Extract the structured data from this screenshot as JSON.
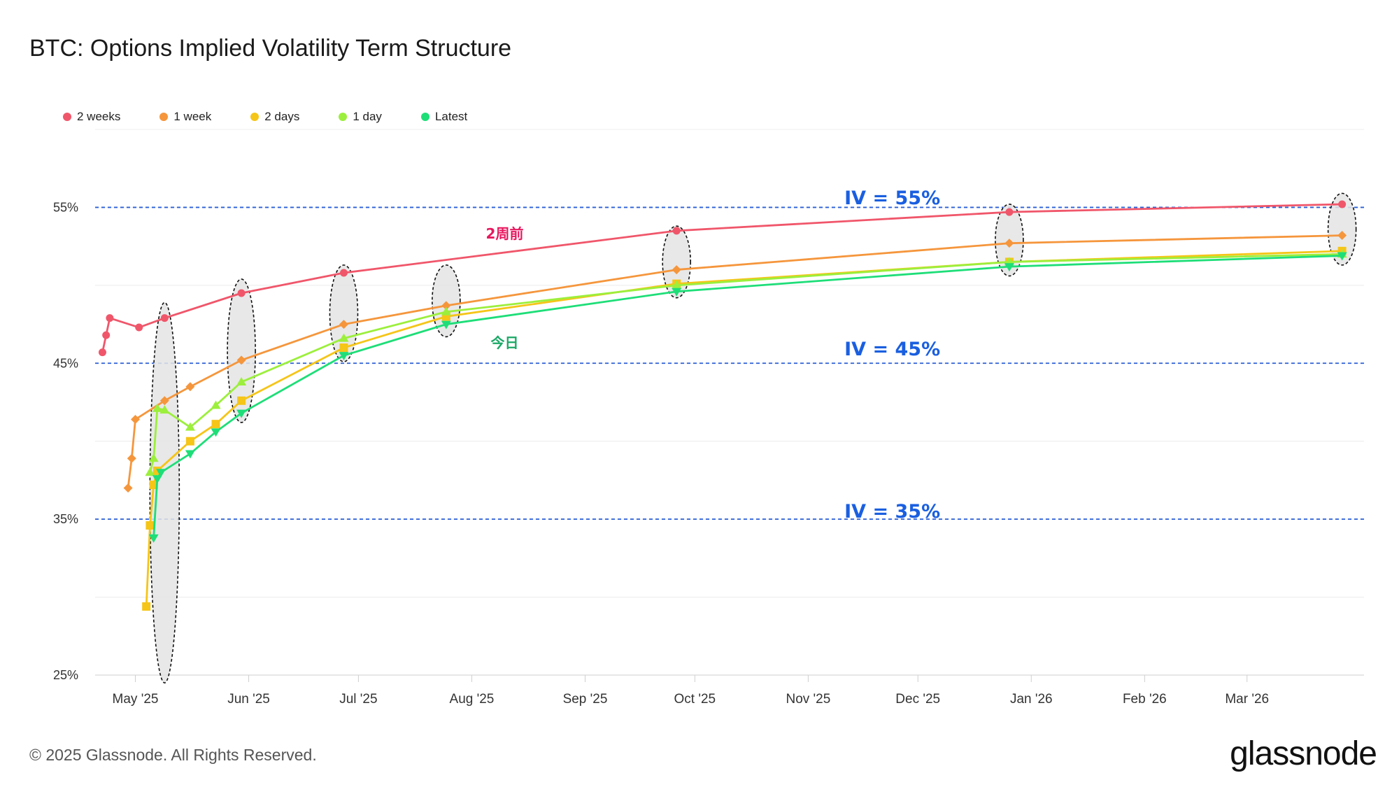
{
  "header": {
    "title": "BTC: Options Implied Volatility Term Structure"
  },
  "footer": {
    "copyright": "© 2025 Glassnode. All Rights Reserved.",
    "logo_text": "glassnode"
  },
  "chart_data": {
    "type": "line",
    "title": "BTC: Options Implied Volatility Term Structure",
    "x_axis": {
      "type": "date",
      "range": [
        "2025-04-24",
        "2026-03-30"
      ],
      "tick_labels": [
        "May '25",
        "Jun '25",
        "Jul '25",
        "Aug '25",
        "Sep '25",
        "Oct '25",
        "Nov '25",
        "Dec '25",
        "Jan '26",
        "Feb '26",
        "Mar '26"
      ],
      "tick_dates": [
        "2025-05-01",
        "2025-06-01",
        "2025-07-01",
        "2025-08-01",
        "2025-09-01",
        "2025-10-01",
        "2025-11-01",
        "2025-12-01",
        "2026-01-01",
        "2026-02-01",
        "2026-03-01"
      ]
    },
    "y_axis": {
      "range": [
        25,
        60
      ],
      "tick_values": [
        25,
        35,
        45,
        55
      ],
      "tick_labels": [
        "25%",
        "35%",
        "45%",
        "55%"
      ]
    },
    "grid": true,
    "legend_position": "top-left",
    "series": [
      {
        "name": "2 weeks",
        "color": "#f0566a",
        "marker": "circle",
        "points": [
          [
            "2025-04-26",
            45.7
          ],
          [
            "2025-04-27",
            46.8
          ],
          [
            "2025-04-28",
            47.8
          ],
          [
            "2025-05-02",
            47.8
          ],
          [
            "2025-05-02",
            47.8
          ],
          [
            "2025-05-03",
            47.8
          ],
          [
            "2025-05-03",
            47.8
          ],
          [
            "2025-05-03",
            47.8
          ],
          [
            "2025-05-02",
            47.8
          ],
          [
            "2025-05-03",
            47.8
          ],
          [
            "2025-05-03",
            47.8
          ],
          [
            "2025-05-03",
            47.8
          ],
          [
            "2025-05-03",
            47.8
          ],
          [
            "2025-05-03",
            47.8
          ],
          [
            "2025-05-03",
            47.8
          ],
          [
            "2025-05-03",
            47.8
          ],
          [
            "2025-05-03",
            47.8
          ],
          [
            "2025-05-03",
            47.8
          ],
          [
            "2025-05-03",
            47.8
          ],
          [
            "2025-05-03",
            47.8
          ],
          [
            "2025-05-03",
            47.8
          ],
          [
            "2025-05-03",
            47.8
          ],
          [
            "2025-05-03",
            47.8
          ],
          [
            "2025-05-03",
            47.8
          ],
          [
            "2025-05-03",
            47.8
          ],
          [
            "2025-05-03",
            47.8
          ],
          [
            "2025-05-03",
            47.8
          ],
          [
            "2025-05-03",
            47.8
          ],
          [
            "2025-05-03",
            47.8
          ],
          [
            "2025-05-03",
            47.8
          ],
          [
            "2025-05-03",
            47.8
          ],
          [
            "2025-05-03",
            47.8
          ],
          [
            "2025-05-03",
            47.8
          ],
          [
            "2025-05-03",
            47.8
          ],
          [
            "2025-05-03",
            47.8
          ],
          [
            "2025-05-03",
            47.8
          ],
          [
            "2025-05-03",
            47.8
          ],
          [
            "2025-05-03",
            47.8
          ],
          [
            "2025-05-03",
            47.8
          ],
          [
            "2025-05-03",
            47.8
          ],
          [
            "2025-05-03",
            47.8
          ],
          [
            "2025-05-03",
            47.8
          ],
          [
            "2025-05-03",
            47.8
          ],
          [
            "2025-05-03",
            47.8
          ],
          [
            "2025-05-03",
            47.8
          ],
          [
            "2025-05-03",
            47.8
          ],
          [
            "2025-05-03",
            47.8
          ],
          [
            "2025-05-03",
            47.8
          ],
          [
            "2025-05-03",
            47.8
          ],
          [
            "2025-05-03",
            47.8
          ],
          [
            "2025-05-03",
            47.8
          ],
          [
            "2025-05-03",
            47.8
          ],
          [
            "2025-05-03",
            47.8
          ],
          [
            "2025-05-03",
            47.8
          ],
          [
            "2025-05-03",
            47.8
          ],
          [
            "2025-05-03",
            47.8
          ],
          [
            "2025-05-03",
            47.8
          ],
          [
            "2025-05-03",
            47.8
          ],
          [
            "2025-05-03",
            47.8
          ],
          [
            "2025-05-03",
            47.8
          ],
          [
            "2025-05-03",
            47.8
          ],
          [
            "2025-05-03",
            47.8
          ],
          [
            "2025-05-03",
            47.8
          ],
          [
            "2025-05-03",
            47.8
          ],
          [
            "2025-05-03",
            47.8
          ],
          [
            "2025-05-03",
            47.8
          ],
          [
            "2025-05-03",
            47.8
          ],
          [
            "2025-05-03",
            47.8
          ],
          [
            "2025-05-03",
            47.8
          ],
          [
            "2025-05-03",
            47.8
          ],
          [
            "2025-05-03",
            47.8
          ],
          [
            "2025-05-03",
            47.8
          ],
          [
            "2025-05-03",
            47.8
          ],
          [
            "2025-05-03",
            47.8
          ],
          [
            "2025-05-03",
            47.8
          ],
          [
            "2025-05-03",
            47.8
          ],
          [
            "2025-05-03",
            47.8
          ],
          [
            "2025-05-03",
            47.8
          ],
          [
            "2025-05-03",
            47.8
          ],
          [
            "2025-05-03",
            47.8
          ],
          [
            "2025-05-03",
            47.8
          ],
          [
            "2025-05-03",
            47.8
          ],
          [
            "2025-05-03",
            47.8
          ],
          [
            "2025-05-03",
            47.8
          ],
          [
            "2025-05-03",
            47.8
          ],
          [
            "2025-05-03",
            47.8
          ],
          [
            "2025-05-03",
            47.8
          ],
          [
            "2025-05-03",
            47.8
          ],
          [
            "2025-05-03",
            47.8
          ],
          [
            "2025-05-03",
            47.8
          ],
          [
            "2025-05-03",
            47.8
          ],
          [
            "2025-05-03",
            47.8
          ],
          [
            "2025-05-03",
            47.8
          ],
          [
            "2025-05-03",
            47.8
          ],
          [
            "2025-05-03",
            47.8
          ],
          [
            "2025-05-03",
            47.8
          ],
          [
            "2025-05-03",
            47.8
          ],
          [
            "2025-05-03",
            47.8
          ],
          [
            "2025-05-03",
            47.8
          ],
          [
            "2025-05-03",
            47.8
          ],
          [
            "2025-05-03",
            47.8
          ],
          [
            "2025-05-03",
            47.8
          ],
          [
            "2025-05-03",
            47.8
          ],
          [
            "2025-05-03",
            47.8
          ],
          [
            "2025-05-03",
            47.8
          ],
          [
            "2025-05-03",
            47.8
          ],
          [
            "2025-05-03",
            47.8
          ],
          [
            "2025-05-03",
            47.8
          ],
          [
            "2025-05-03",
            47.8
          ],
          [
            "2025-05-03",
            47.8
          ],
          [
            "2025-05-03",
            47.8
          ],
          [
            "2025-05-03",
            47.8
          ],
          [
            "2025-05-03",
            47.8
          ],
          [
            "2025-05-03",
            47.8
          ],
          [
            "2025-05-03",
            47.8
          ],
          [
            "2025-05-03",
            47.8
          ],
          [
            "2025-05-03",
            47.8
          ],
          [
            "2025-05-03",
            47.8
          ],
          [
            "2025-05-03",
            47.8
          ],
          [
            "2025-05-03",
            47.8
          ],
          [
            "2025-05-03",
            47.8
          ],
          [
            "2025-05-03",
            47.8
          ],
          [
            "2025-05-03",
            47.8
          ],
          [
            "2025-05-03",
            47.8
          ],
          [
            "2025-05-03",
            47.8
          ],
          [
            "2025-05-03",
            47.8
          ],
          [
            "2025-05-03",
            47.8
          ],
          [
            "2025-05-03",
            47.8
          ],
          [
            "2025-05-03",
            47.8
          ],
          [
            "2025-05-03",
            47.8
          ],
          [
            "2025-05-03",
            47.8
          ],
          [
            "2025-05-03",
            47.8
          ],
          [
            "2025-05-03",
            47.8
          ],
          [
            "2025-05-03",
            47.8
          ],
          [
            "2025-05-03",
            47.8
          ],
          [
            "2025-05-03",
            47.8
          ],
          [
            "2025-05-03",
            47.8
          ],
          [
            "2025-05-03",
            47.8
          ],
          [
            "2025-05-03",
            47.8
          ],
          [
            "2025-05-03",
            47.8
          ],
          [
            "2025-05-03",
            47.8
          ],
          [
            "2025-05-03",
            47.8
          ],
          [
            "2025-05-03",
            47.8
          ],
          [
            "2025-05-03",
            47.8
          ],
          [
            "2025-05-03",
            47.8
          ],
          [
            "2025-05-03",
            47.8
          ],
          [
            "2025-05-03",
            47.8
          ],
          [
            "2025-05-03",
            47.8
          ],
          [
            "2025-05-03",
            47.8
          ],
          [
            "2025-05-03",
            47.8
          ],
          [
            "2025-05-03",
            47.8
          ],
          [
            "2025-05-03",
            47.8
          ],
          [
            "2025-05-03",
            47.8
          ],
          [
            "2025-05-03",
            47.8
          ],
          [
            "2025-05-03",
            47.8
          ],
          [
            "2025-05-03",
            47.8
          ],
          [
            "2025-05-03",
            47.8
          ],
          [
            "2025-05-03",
            47.8
          ],
          [
            "2025-05-03",
            47.8
          ],
          [
            "2025-05-03",
            47.8
          ],
          [
            "2025-05-03",
            47.8
          ],
          [
            "2025-05-03",
            47.8
          ],
          [
            "2025-05-03",
            47.8
          ],
          [
            "2025-05-03",
            47.8
          ],
          [
            "2025-05-03",
            47.8
          ],
          [
            "2025-05-03",
            47.8
          ],
          [
            "2025-05-03",
            47.8
          ],
          [
            "2025-05-03",
            47.8
          ],
          [
            "2025-05-03",
            47.8
          ],
          [
            "2025-05-03",
            47.8
          ],
          [
            "2025-05-03",
            47.8
          ],
          [
            "2025-05-03",
            47.8
          ],
          [
            "2025-05-03",
            47.8
          ],
          [
            "2025-05-03",
            47.8
          ],
          [
            "2025-05-03",
            47.8
          ],
          [
            "2025-05-03",
            47.8
          ],
          [
            "2025-05-03",
            47.8
          ],
          [
            "2025-05-03",
            47.8
          ],
          [
            "2025-05-03",
            47.8
          ],
          [
            "2025-05-03",
            47.8
          ],
          [
            "2025-05-03",
            47.8
          ],
          [
            "2025-05-03",
            47.8
          ],
          [
            "2025-05-03",
            47.8
          ],
          [
            "2025-05-03",
            47.8
          ],
          [
            "2025-05-03",
            47.8
          ],
          [
            "2025-05-03",
            47.8
          ],
          [
            "2025-05-03",
            47.8
          ],
          [
            "2025-05-03",
            47.8
          ],
          [
            "2025-05-03",
            47.8
          ],
          [
            "2025-05-03",
            47.8
          ],
          [
            "2025-05-03",
            47.8
          ],
          [
            "2025-05-03",
            47.8
          ],
          [
            "2025-05-03",
            47.8
          ],
          [
            "2025-05-03",
            47.8
          ],
          [
            "2025-05-03",
            47.8
          ],
          [
            "2025-05-03",
            47.8
          ],
          [
            "2025-05-03",
            47.8
          ],
          [
            "2025-05-03",
            47.8
          ],
          [
            "2025-05-03",
            47.8
          ],
          [
            "2025-05-03",
            47.8
          ],
          [
            "2025-05-03",
            47.8
          ],
          [
            "2025-05-03",
            47.8
          ],
          [
            "2025-05-03",
            47.8
          ],
          [
            "2025-05-03",
            47.8
          ],
          [
            "2025-05-03",
            47.8
          ],
          [
            "2025-05-03",
            47.8
          ],
          [
            "2025-05-03",
            47.8
          ],
          [
            "2025-05-03",
            47.8
          ],
          [
            "2025-05-03",
            47.8
          ],
          [
            "2025-05-03",
            47.8
          ],
          [
            "2025-05-03",
            47.8
          ]
        ]
      }
    ]
  }
}
